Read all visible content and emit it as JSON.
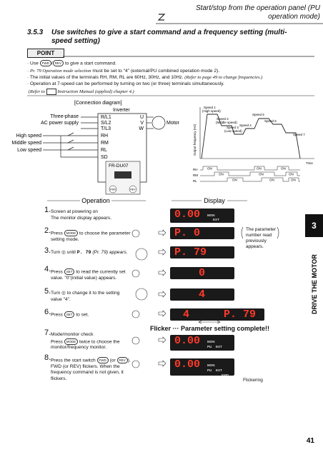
{
  "header": {
    "title": "Start/stop from the operation panel (PU operation mode)"
  },
  "section": {
    "number": "3.5.3",
    "title": "Use switches to give a start command and a frequency setting (multi-speed setting)"
  },
  "point": {
    "label": "POINT",
    "items": [
      {
        "pre": "Use",
        "button1": "FWD",
        "sep": "/",
        "button2": "REV",
        "post": "to give a start command."
      },
      {
        "param": "Pr. 79 Operation mode selection",
        "text": "must be set to \"4\" (external/PU combined operation mode 2)."
      },
      {
        "text": "The initial values of the terminals RH, RM, RL are 60Hz, 30Hz, and 10Hz.",
        "note": "(Refer to page 49 to change frequencies.)"
      },
      {
        "text": "Operation at 7-speed can be performed by turning on two (or three) terminals simultaneously."
      },
      {
        "pre": "(Refer to",
        "post": "Instruction Manual (applied) chapter 4.)"
      }
    ]
  },
  "connection": {
    "title": "[Connection diagram]",
    "inverter": "Inverter",
    "power": [
      "Three-phase",
      "AC power supply"
    ],
    "input_terminals": [
      "R/L1",
      "S/L2",
      "T/L3"
    ],
    "output_terminals": [
      "U",
      "V",
      "W"
    ],
    "motor": "Motor",
    "switches": [
      "High speed",
      "Middle speed",
      "Low speed"
    ],
    "signal_terminals": [
      "RH",
      "RM",
      "RL",
      "SD"
    ],
    "panel": "FR-DU07",
    "panel_buttons": [
      "FWD",
      "REV"
    ]
  },
  "timing": {
    "y_label": "Output frequency (Hz)",
    "speeds": [
      {
        "name": "Speed 1",
        "sub": "(High speed)"
      },
      {
        "name": "Speed 2",
        "sub": "(Middle speed)"
      },
      {
        "name": "Speed 3",
        "sub": "(Low speed)"
      },
      {
        "name": "Speed 4"
      },
      {
        "name": "Speed 5"
      },
      {
        "name": "Speed 6"
      },
      {
        "name": "Speed 7"
      }
    ],
    "time": "Time",
    "signals": [
      "RH",
      "RM",
      "RL"
    ],
    "on": "ON"
  },
  "operation": {
    "heading": "Operation",
    "display_heading": "Display",
    "steps": [
      {
        "number": "1.",
        "lines": [
          "Screen at powering on",
          "The monitor display appears."
        ],
        "display": "0.00",
        "indicators": [
          "MON",
          "EXT"
        ]
      },
      {
        "number": "2.",
        "pre": "Press",
        "button": "MODE",
        "post": "to choose the parameter setting mode.",
        "display": "P. 0",
        "note": "The parameter number read previously appears."
      },
      {
        "number": "3.",
        "pre": "Turn",
        "mid": "until",
        "code": "P. 79",
        "post": "(Pr. 79) appears.",
        "display": "P. 79"
      },
      {
        "number": "4.",
        "pre": "Press",
        "button": "SET",
        "post": "to read the currently set value. \"0\"(initial value) appears.",
        "display": "0"
      },
      {
        "number": "5.",
        "pre": "Turn",
        "post": "to change it to the setting value \"4\".",
        "display": "4"
      },
      {
        "number": "6.",
        "pre": "Press",
        "button": "SET",
        "post": "to set.",
        "display": "4",
        "display2": "P. 79",
        "flicker": "Flicker ··· Parameter setting complete!!"
      },
      {
        "number": "7.",
        "title": "Mode/monitor check",
        "pre": "Press",
        "button": "MODE",
        "post": "twice to choose the monitor/frequency monitor.",
        "display": "0.00",
        "indicators": [
          "MON",
          "PU",
          "EXT"
        ]
      },
      {
        "number": "8.",
        "pre": "Press the start switch",
        "button": "FWD",
        "mid": "(or",
        "button2": "REV",
        "post": "). FWD (or REV) flickers. When the frequency command is not given, it flickers.",
        "display": "0.00",
        "indicators": [
          "MON",
          "PU",
          "EXT",
          "FWD"
        ],
        "note": "Flickering"
      }
    ]
  },
  "side_tab": {
    "number": "3",
    "label": "DRIVE THE MOTOR"
  },
  "page_number": "41"
}
